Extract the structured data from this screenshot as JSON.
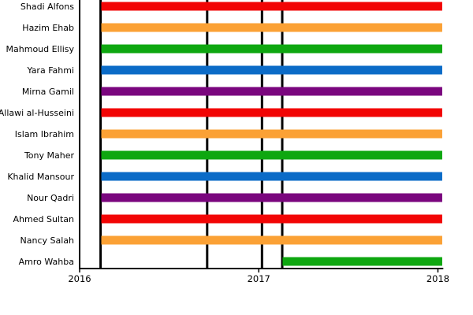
{
  "chart_data": {
    "type": "bar",
    "subtype": "gantt",
    "title": "",
    "xlabel": "",
    "ylabel": "",
    "legend": "none",
    "grid": "off",
    "background_color": "#ffffff",
    "axis_color": "#000000",
    "xlim": [
      2016,
      2018.03
    ],
    "x_ticks": [
      {
        "value": 2016,
        "label": "2016"
      },
      {
        "value": 2017,
        "label": "2017"
      },
      {
        "value": 2018,
        "label": "2018"
      }
    ],
    "palette": {
      "red": "#f20505",
      "orange": "#fba135",
      "green": "#0ea710",
      "blue": "#0b6bc7",
      "purple": "#7a067e"
    },
    "event_lines_x": [
      2016.117,
      2016.712,
      2017.018,
      2017.131
    ],
    "event_line_color": "#000000",
    "categories": [
      "Shadi Alfons",
      "Hazim Ehab",
      "Mahmoud Ellisy",
      "Yara Fahmi",
      "Mirna Gamil",
      "Allawi al-Husseini",
      "Islam Ibrahim",
      "Tony Maher",
      "Khalid Mansour",
      "Nour Qadri",
      "Ahmed Sultan",
      "Nancy Salah",
      "Amro Wahba"
    ],
    "rows": [
      {
        "label": "Shadi Alfons",
        "color": "red",
        "start": 2016.121,
        "end": 2018.024
      },
      {
        "label": "Hazim Ehab",
        "color": "orange",
        "start": 2016.121,
        "end": 2018.024
      },
      {
        "label": "Mahmoud Ellisy",
        "color": "green",
        "start": 2016.121,
        "end": 2018.024
      },
      {
        "label": "Yara Fahmi",
        "color": "blue",
        "start": 2016.121,
        "end": 2018.024
      },
      {
        "label": "Mirna Gamil",
        "color": "purple",
        "start": 2016.121,
        "end": 2018.024
      },
      {
        "label": "Allawi al-Husseini",
        "color": "red",
        "start": 2016.121,
        "end": 2018.024
      },
      {
        "label": "Islam Ibrahim",
        "color": "orange",
        "start": 2016.121,
        "end": 2018.024
      },
      {
        "label": "Tony Maher",
        "color": "green",
        "start": 2016.121,
        "end": 2018.024
      },
      {
        "label": "Khalid Mansour",
        "color": "blue",
        "start": 2016.121,
        "end": 2018.024
      },
      {
        "label": "Nour Qadri",
        "color": "purple",
        "start": 2016.121,
        "end": 2018.024
      },
      {
        "label": "Ahmed Sultan",
        "color": "red",
        "start": 2016.121,
        "end": 2018.024
      },
      {
        "label": "Nancy Salah",
        "color": "orange",
        "start": 2016.121,
        "end": 2018.024
      },
      {
        "label": "Amro Wahba",
        "color": "green",
        "start": 2017.133,
        "end": 2018.024
      }
    ]
  }
}
